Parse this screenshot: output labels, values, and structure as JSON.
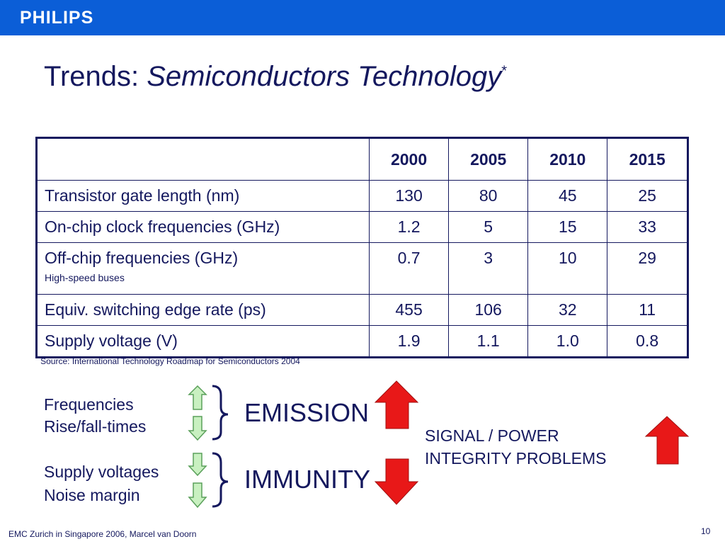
{
  "header": {
    "logo": "PHILIPS"
  },
  "title": {
    "plain": "Trends: ",
    "italic": "Semiconductors Technology",
    "mark": "*"
  },
  "table": {
    "columns": [
      "2000",
      "2005",
      "2010",
      "2015"
    ],
    "rows": [
      {
        "label": "Transistor gate length (nm)",
        "values": [
          "130",
          "80",
          "45",
          "25"
        ]
      },
      {
        "label": "On-chip clock frequencies (GHz)",
        "values": [
          "1.2",
          "5",
          "15",
          "33"
        ]
      },
      {
        "label": "Off-chip frequencies (GHz)",
        "note": "High-speed buses",
        "values": [
          "0.7",
          "3",
          "10",
          "29"
        ]
      },
      {
        "label": "Equiv. switching edge rate (ps)",
        "values": [
          "455",
          "106",
          "32",
          "11"
        ]
      },
      {
        "label": "Supply voltage (V)",
        "values": [
          "1.9",
          "1.1",
          "1.0",
          "0.8"
        ]
      }
    ]
  },
  "footnote": {
    "mark": "*",
    "text": "Source: International Technology Roadmap for Semiconductors 2004"
  },
  "emission": {
    "items": [
      "Frequencies",
      "Rise/fall-times"
    ],
    "label": "EMISSION"
  },
  "immunity": {
    "items": [
      "Supply voltages",
      "Noise margin"
    ],
    "label": "IMMUNITY"
  },
  "result": {
    "lines": [
      "SIGNAL / POWER",
      "INTEGRITY PROBLEMS"
    ]
  },
  "footer": {
    "text": "EMC Zurich in Singapore 2006, Marcel van Doorn",
    "page": "10"
  }
}
